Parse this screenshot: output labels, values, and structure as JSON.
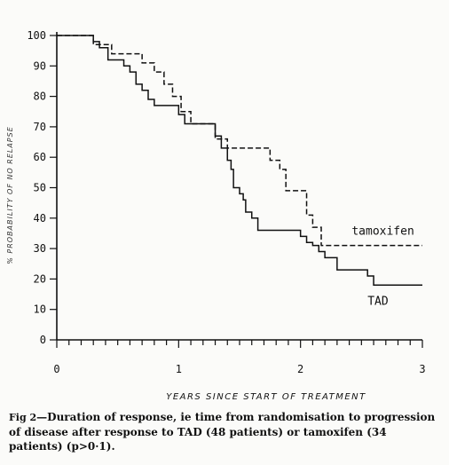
{
  "chart_data": {
    "type": "line",
    "title": "",
    "xlabel": "YEARS SINCE START OF TREATMENT",
    "ylabel": "% PROBABILITY OF NO RELAPSE",
    "xlim": [
      0,
      3
    ],
    "ylim": [
      0,
      100
    ],
    "x_ticks": [
      0,
      1,
      2,
      3
    ],
    "y_ticks": [
      0,
      10,
      20,
      30,
      40,
      50,
      60,
      70,
      80,
      90,
      100
    ],
    "step": true,
    "series": [
      {
        "name": "tamoxifen",
        "style": "dashed",
        "color": "#111111",
        "x": [
          0,
          0.3,
          0.45,
          0.7,
          0.8,
          0.88,
          0.95,
          1.02,
          1.1,
          1.3,
          1.4,
          1.6,
          1.75,
          1.83,
          1.88,
          2.05,
          2.1,
          2.17,
          3.0
        ],
        "y": [
          100,
          97,
          94,
          91,
          88,
          84,
          80,
          75,
          71,
          66,
          63,
          63,
          59,
          56,
          49,
          41,
          37,
          31,
          31
        ]
      },
      {
        "name": "TAD",
        "style": "solid",
        "color": "#111111",
        "x": [
          0,
          0.3,
          0.35,
          0.42,
          0.55,
          0.6,
          0.65,
          0.7,
          0.75,
          0.8,
          1.0,
          1.05,
          1.3,
          1.35,
          1.4,
          1.43,
          1.45,
          1.5,
          1.53,
          1.55,
          1.6,
          1.65,
          1.9,
          2.0,
          2.05,
          2.1,
          2.15,
          2.2,
          2.3,
          2.55,
          2.6,
          3.0
        ],
        "y": [
          100,
          98,
          96,
          92,
          90,
          88,
          84,
          82,
          79,
          77,
          74,
          71,
          67,
          63,
          59,
          56,
          50,
          48,
          46,
          42,
          40,
          36,
          36,
          34,
          32,
          31,
          29,
          27,
          23,
          21,
          18,
          18
        ]
      }
    ]
  },
  "caption": {
    "fig_label": "Fig 2",
    "text": "—Duration of response, ie time from randomisation to progression of disease after response to TAD (48 patients) or tamoxifen (34 patients) (p>0·1)."
  }
}
